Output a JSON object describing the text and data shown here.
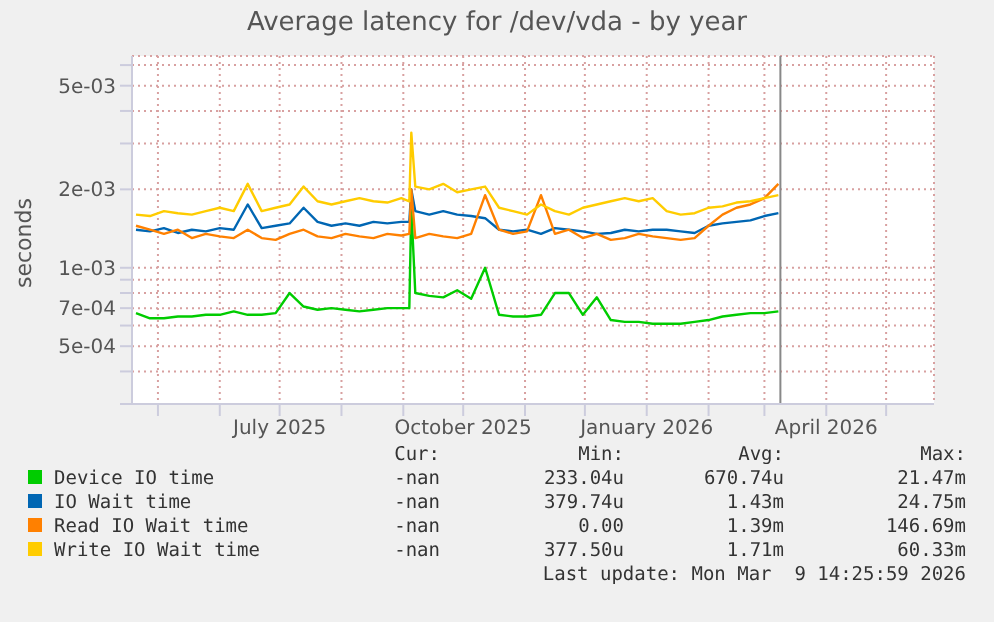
{
  "chart_data": {
    "type": "line",
    "title": "Average latency for /dev/vda - by year",
    "ylabel": "seconds",
    "log": "y",
    "grid": true,
    "legend": "bottom",
    "marker": "none",
    "line_style": "solid",
    "x": [
      "2025-04-20",
      "2025-04-27",
      "2025-05-04",
      "2025-05-11",
      "2025-05-18",
      "2025-05-25",
      "2025-06-01",
      "2025-06-08",
      "2025-06-15",
      "2025-06-22",
      "2025-06-29",
      "2025-07-06",
      "2025-07-13",
      "2025-07-20",
      "2025-07-27",
      "2025-08-03",
      "2025-08-10",
      "2025-08-17",
      "2025-08-24",
      "2025-08-31",
      "2025-09-04",
      "2025-09-05",
      "2025-09-07",
      "2025-09-14",
      "2025-09-21",
      "2025-09-28",
      "2025-10-05",
      "2025-10-12",
      "2025-10-19",
      "2025-10-26",
      "2025-11-02",
      "2025-11-09",
      "2025-11-16",
      "2025-11-23",
      "2025-11-30",
      "2025-12-07",
      "2025-12-14",
      "2025-12-21",
      "2025-12-28",
      "2026-01-04",
      "2026-01-11",
      "2026-01-18",
      "2026-01-25",
      "2026-02-01",
      "2026-02-08",
      "2026-02-15",
      "2026-02-22",
      "2026-03-01",
      "2026-03-08"
    ],
    "xlim": [
      "2025-04-18",
      "2026-05-25"
    ],
    "xticks": [
      {
        "value": "2025-05-01",
        "label": null
      },
      {
        "value": "2025-06-01",
        "label": null
      },
      {
        "value": "2025-07-01",
        "label": "July 2025"
      },
      {
        "value": "2025-08-01",
        "label": null
      },
      {
        "value": "2025-09-01",
        "label": null
      },
      {
        "value": "2025-10-01",
        "label": "October 2025"
      },
      {
        "value": "2025-11-01",
        "label": null
      },
      {
        "value": "2025-12-01",
        "label": null
      },
      {
        "value": "2026-01-01",
        "label": "January 2026"
      },
      {
        "value": "2026-02-01",
        "label": null
      },
      {
        "value": "2026-03-01",
        "label": null
      },
      {
        "value": "2026-04-01",
        "label": "April 2026"
      },
      {
        "value": "2026-05-01",
        "label": null
      }
    ],
    "ylim": [
      0.0003,
      0.0065
    ],
    "yticks": [
      {
        "value": 0.0003,
        "label": null
      },
      {
        "value": 0.0004,
        "label": null
      },
      {
        "value": 0.0005,
        "label": "5e-04"
      },
      {
        "value": 0.0006,
        "label": null
      },
      {
        "value": 0.0007,
        "label": "7e-04"
      },
      {
        "value": 0.0008,
        "label": null
      },
      {
        "value": 0.0009,
        "label": null
      },
      {
        "value": 0.001,
        "label": "1e-03"
      },
      {
        "value": 0.002,
        "label": "2e-03"
      },
      {
        "value": 0.003,
        "label": null
      },
      {
        "value": 0.004,
        "label": null
      },
      {
        "value": 0.005,
        "label": "5e-03"
      },
      {
        "value": 0.006,
        "label": null
      }
    ],
    "ref_lines": [
      {
        "axis": "x",
        "value": "2026-03-09",
        "color": "#888888"
      }
    ],
    "series": [
      {
        "name": "Device IO time",
        "color": "#00cc00",
        "values": [
          0.00067,
          0.00064,
          0.00064,
          0.00065,
          0.00065,
          0.00066,
          0.00066,
          0.00068,
          0.00066,
          0.00066,
          0.00067,
          0.0008,
          0.00071,
          0.00069,
          0.0007,
          0.00069,
          0.00068,
          0.00069,
          0.0007,
          0.0007,
          0.0007,
          0.0017,
          0.0008,
          0.00078,
          0.00077,
          0.00082,
          0.00076,
          0.001,
          0.00066,
          0.00065,
          0.00065,
          0.00066,
          0.0008,
          0.0008,
          0.00066,
          0.00077,
          0.00063,
          0.00062,
          0.00062,
          0.00061,
          0.00061,
          0.00061,
          0.00062,
          0.00063,
          0.00065,
          0.00066,
          0.00067,
          0.00067,
          0.00068
        ]
      },
      {
        "name": "IO Wait time",
        "color": "#0066b3",
        "values": [
          0.0014,
          0.00138,
          0.00142,
          0.00136,
          0.0014,
          0.00138,
          0.00142,
          0.0014,
          0.00175,
          0.00142,
          0.00145,
          0.00148,
          0.0017,
          0.0015,
          0.00145,
          0.00148,
          0.00145,
          0.0015,
          0.00148,
          0.0015,
          0.0015,
          0.002,
          0.00165,
          0.0016,
          0.00165,
          0.0016,
          0.00158,
          0.00155,
          0.0014,
          0.00138,
          0.0014,
          0.00135,
          0.00142,
          0.0014,
          0.00138,
          0.00135,
          0.00136,
          0.0014,
          0.00138,
          0.0014,
          0.0014,
          0.00138,
          0.00136,
          0.00145,
          0.00148,
          0.0015,
          0.00152,
          0.00158,
          0.00162
        ]
      },
      {
        "name": "Read IO Wait time",
        "color": "#ff8000",
        "values": [
          0.00145,
          0.0014,
          0.00135,
          0.0014,
          0.0013,
          0.00135,
          0.00132,
          0.0013,
          0.0014,
          0.0013,
          0.00128,
          0.00135,
          0.0014,
          0.00132,
          0.0013,
          0.00135,
          0.00132,
          0.0013,
          0.00135,
          0.00133,
          0.00135,
          0.002,
          0.0013,
          0.00135,
          0.00132,
          0.0013,
          0.00135,
          0.0019,
          0.0014,
          0.00135,
          0.00138,
          0.0019,
          0.00135,
          0.0014,
          0.0013,
          0.00135,
          0.00128,
          0.0013,
          0.00135,
          0.00132,
          0.0013,
          0.00128,
          0.0013,
          0.00145,
          0.0016,
          0.0017,
          0.00175,
          0.00185,
          0.0021
        ]
      },
      {
        "name": "Write IO Wait time",
        "color": "#ffcc00",
        "values": [
          0.0016,
          0.00158,
          0.00165,
          0.00162,
          0.0016,
          0.00165,
          0.0017,
          0.00165,
          0.0021,
          0.00165,
          0.0017,
          0.00175,
          0.00205,
          0.0018,
          0.00175,
          0.0018,
          0.00185,
          0.0018,
          0.00178,
          0.00185,
          0.0018,
          0.0033,
          0.00205,
          0.002,
          0.0021,
          0.00195,
          0.002,
          0.00205,
          0.0017,
          0.00165,
          0.0016,
          0.00175,
          0.00165,
          0.0016,
          0.0017,
          0.00175,
          0.0018,
          0.00185,
          0.0018,
          0.00185,
          0.00165,
          0.0016,
          0.00162,
          0.0017,
          0.00172,
          0.00178,
          0.0018,
          0.00185,
          0.0019
        ]
      }
    ],
    "annotations": [
      "Cur:",
      "Min:",
      "Avg:",
      "Max:",
      "-nan",
      "233.04u",
      "670.74u",
      "21.47m",
      "-nan",
      "379.74u",
      "1.43m",
      "24.75m",
      "-nan",
      "0.00",
      "1.39m",
      "146.69m",
      "-nan",
      "377.50u",
      "1.71m",
      "60.33m",
      "Last update: Mon Mar  9 14:25:59 2026"
    ]
  }
}
